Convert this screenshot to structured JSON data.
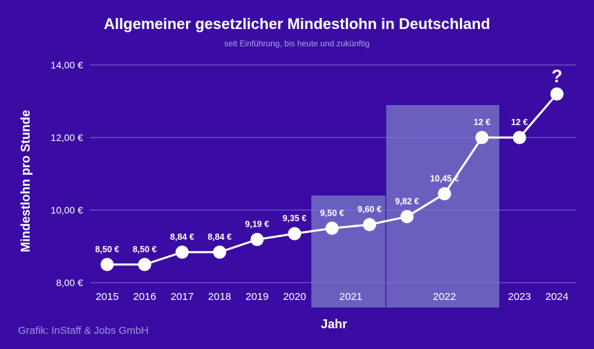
{
  "title": "Allgemeiner gesetzlicher Mindestlohn in Deutschland",
  "subtitle": "seit Einführung, bis heute und zukünftig",
  "credit": "Grafik: InStaff & Jobs GmbH",
  "chart_data": {
    "type": "line",
    "xlabel": "Jahr",
    "ylabel": "Mindestlohn pro Stunde",
    "ylim": [
      8,
      14
    ],
    "yticks": [
      {
        "value": 8,
        "label": "8,00 €"
      },
      {
        "value": 10,
        "label": "10,00 €"
      },
      {
        "value": 12,
        "label": "12,00 €"
      },
      {
        "value": 14,
        "label": "14,00 €"
      }
    ],
    "grid": true,
    "x_groups": [
      {
        "label": "2015",
        "points": [
          0
        ]
      },
      {
        "label": "2016",
        "points": [
          1
        ]
      },
      {
        "label": "2017",
        "points": [
          2
        ]
      },
      {
        "label": "2018",
        "points": [
          3
        ]
      },
      {
        "label": "2019",
        "points": [
          4
        ]
      },
      {
        "label": "2020",
        "points": [
          5
        ]
      },
      {
        "label": "2021",
        "points": [
          6,
          7
        ],
        "highlighted": true
      },
      {
        "label": "2022",
        "points": [
          8,
          9,
          10
        ],
        "highlighted": true
      },
      {
        "label": "2023",
        "points": [
          11
        ]
      },
      {
        "label": "2024",
        "points": [
          12
        ]
      }
    ],
    "points": [
      {
        "value": 8.5,
        "label": "8,50 €"
      },
      {
        "value": 8.5,
        "label": "8,50 €"
      },
      {
        "value": 8.84,
        "label": "8,84 €"
      },
      {
        "value": 8.84,
        "label": "8,84 €"
      },
      {
        "value": 9.19,
        "label": "9,19 €"
      },
      {
        "value": 9.35,
        "label": "9,35 €"
      },
      {
        "value": 9.5,
        "label": "9,50 €"
      },
      {
        "value": 9.6,
        "label": "9,60 €"
      },
      {
        "value": 9.82,
        "label": "9,82 €"
      },
      {
        "value": 10.45,
        "label": "10,45 €"
      },
      {
        "value": 12,
        "label": "12 €"
      },
      {
        "value": 12,
        "label": "12 €"
      },
      {
        "value": 13.2,
        "label": "?"
      }
    ],
    "colors": {
      "background": "#3a0ca3",
      "line": "#ffffff",
      "grid": "#7b70d8",
      "highlight": "#6a5fbf"
    }
  }
}
